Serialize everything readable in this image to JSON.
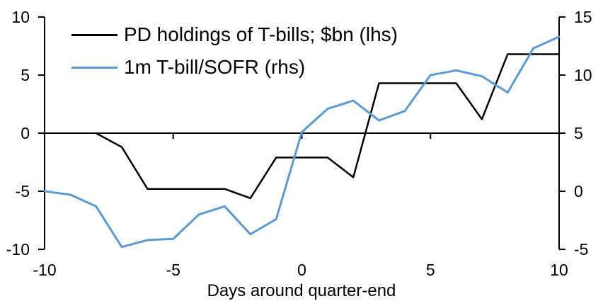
{
  "chart_data": {
    "type": "line",
    "title": "",
    "xlabel": "Days around quarter-end",
    "xlim": [
      -10,
      10
    ],
    "x_ticks": [
      -10,
      -5,
      0,
      5,
      10
    ],
    "left_axis": {
      "ylim": [
        -10,
        10
      ],
      "ticks": [
        10,
        5,
        0,
        -5,
        -10
      ]
    },
    "right_axis": {
      "ylim": [
        -5,
        15
      ],
      "ticks": [
        15,
        10,
        5,
        0,
        -5
      ]
    },
    "grid": false,
    "legend_position": "top-left-inside",
    "zero_line": true,
    "series": [
      {
        "name": "PD holdings of T-bills; $bn (lhs)",
        "axis": "left",
        "color": "#000000",
        "stroke_width": 2.5,
        "x": [
          -8,
          -7,
          -6,
          -5,
          -4,
          -3,
          -2,
          -1,
          0,
          1,
          2,
          3,
          4,
          5,
          6,
          7,
          8,
          9,
          10
        ],
        "y": [
          0,
          -1.2,
          -4.8,
          -4.8,
          -4.8,
          -4.8,
          -5.6,
          -2.1,
          -2.1,
          -2.1,
          -3.8,
          4.3,
          4.3,
          4.3,
          4.3,
          1.2,
          6.8,
          6.8,
          6.8
        ]
      },
      {
        "name": "1m T-bill/SOFR (rhs)",
        "axis": "right",
        "color": "#5B9BD5",
        "stroke_width": 3,
        "x": [
          -10,
          -9,
          -8,
          -7,
          -6,
          -5,
          -4,
          -3,
          -2,
          -1,
          0,
          1,
          2,
          3,
          4,
          5,
          6,
          7,
          8,
          9,
          10
        ],
        "y": [
          0,
          -0.3,
          -1.3,
          -4.8,
          -4.2,
          -4.1,
          -2.0,
          -1.3,
          -3.7,
          -2.4,
          5.1,
          7.1,
          7.8,
          6.1,
          6.9,
          10.0,
          10.4,
          9.9,
          8.5,
          12.3,
          13.3
        ]
      }
    ]
  }
}
